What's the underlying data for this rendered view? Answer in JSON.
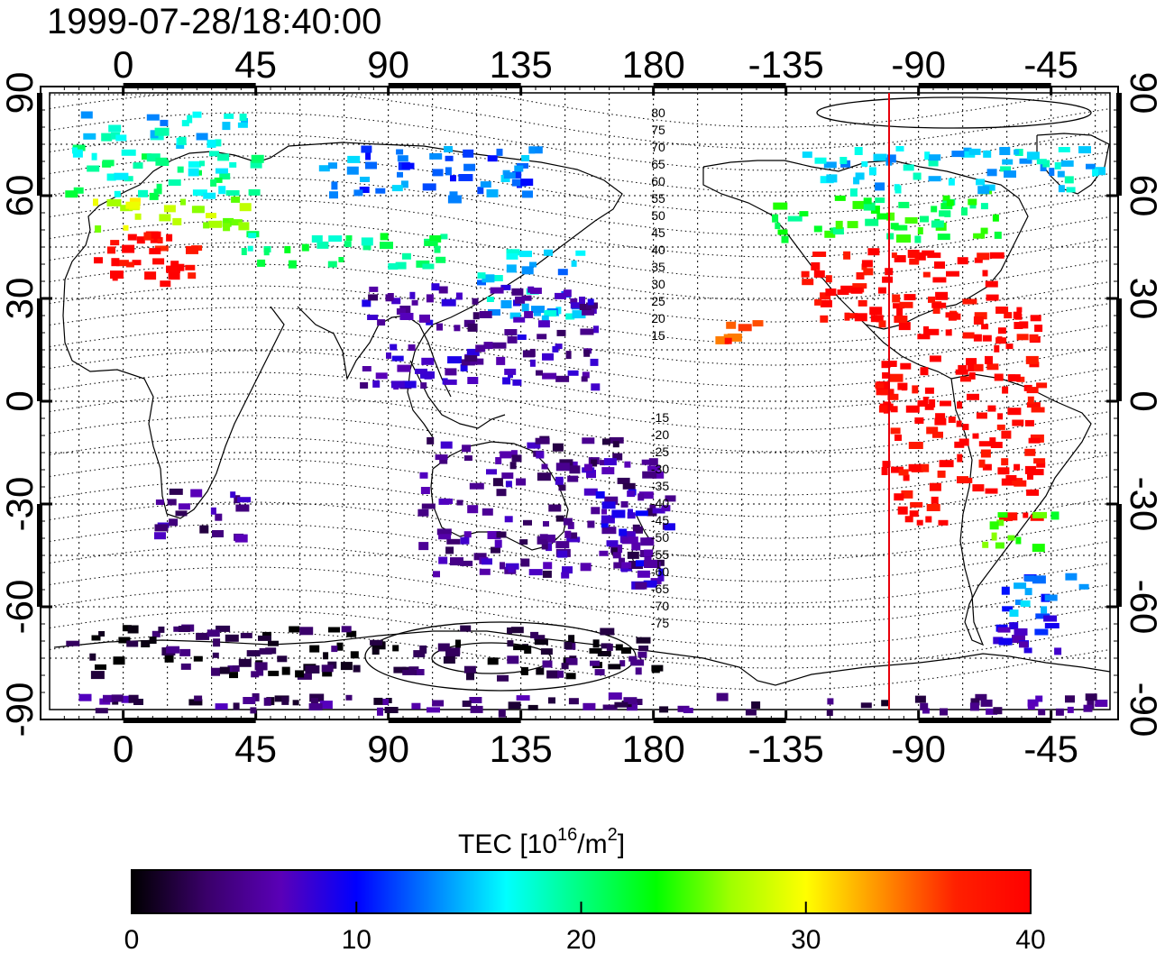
{
  "title": "1999-07-28/18:40:00",
  "map": {
    "projection": "equirectangular",
    "lon_range": [
      -25,
      335
    ],
    "lat_range": [
      -90,
      90
    ],
    "lon_ticks": [
      0,
      45,
      90,
      135,
      180,
      225,
      270,
      315
    ],
    "lon_tick_labels": [
      "0",
      "45",
      "90",
      "135",
      "180",
      "-135",
      "-90",
      "-45"
    ],
    "lat_ticks": [
      90,
      60,
      30,
      0,
      -30,
      -60,
      -90
    ],
    "lat_tick_labels": [
      "90",
      "60",
      "30",
      "0",
      "-30",
      "-60",
      "-90"
    ],
    "grid": "dotted, every 15 degrees",
    "subsolar_line_lon": -100,
    "subsolar_line_color": "#e8000b"
  },
  "magnetic_latitude_labels": [
    "80",
    "75",
    "70",
    "65",
    "60",
    "55",
    "50",
    "45",
    "40",
    "35",
    "30",
    "25",
    "20",
    "15",
    "-15",
    "-20",
    "-25",
    "-30",
    "-35",
    "-40",
    "-45",
    "-50",
    "-55",
    "-60",
    "-65",
    "-70",
    "-75"
  ],
  "colorbar": {
    "title_prefix": "TEC  [10",
    "title_exp1": "16",
    "title_mid": "/m",
    "title_exp2": "2",
    "title_suffix": "]",
    "ticks": [
      "0",
      "10",
      "20",
      "30",
      "40"
    ],
    "min": 0,
    "max": 40,
    "colors": [
      "#000000",
      "#3a006a",
      "#5a00b8",
      "#0000ff",
      "#0080ff",
      "#00ffff",
      "#00ff80",
      "#00ff00",
      "#a0ff00",
      "#ffff00",
      "#ff9000",
      "#ff2000",
      "#ff0000"
    ]
  },
  "chart_data": {
    "type": "heatmap",
    "title": "1999-07-28/18:40:00",
    "value_label": "TEC [10^16/m^2]",
    "value_range": [
      0,
      40
    ],
    "regions": [
      {
        "lon": [
          -15,
          30
        ],
        "lat": [
          35,
          50
        ],
        "tec": 39
      },
      {
        "lon": [
          -15,
          40
        ],
        "lat": [
          50,
          60
        ],
        "tec": 28
      },
      {
        "lon": [
          -20,
          45
        ],
        "lat": [
          60,
          75
        ],
        "tec": 19
      },
      {
        "lon": [
          -15,
          40
        ],
        "lat": [
          75,
          85
        ],
        "tec": 16
      },
      {
        "lon": [
          40,
          110
        ],
        "lat": [
          40,
          50
        ],
        "tec": 20
      },
      {
        "lon": [
          65,
          140
        ],
        "lat": [
          60,
          75
        ],
        "tec": 13
      },
      {
        "lon": [
          120,
          155
        ],
        "lat": [
          25,
          45
        ],
        "tec": 15
      },
      {
        "lon": [
          80,
          160
        ],
        "lat": [
          5,
          35
        ],
        "tec": 6
      },
      {
        "lon": [
          100,
          180
        ],
        "lat": [
          -50,
          -10
        ],
        "tec": 5
      },
      {
        "lon": [
          160,
          185
        ],
        "lat": [
          -55,
          -25
        ],
        "tec": 7
      },
      {
        "lon": [
          10,
          40
        ],
        "lat": [
          -40,
          -25
        ],
        "tec": 5
      },
      {
        "lon": [
          -20,
          180
        ],
        "lat": [
          -80,
          -65
        ],
        "tec": 2
      },
      {
        "lon": [
          -25,
          335
        ],
        "lat": [
          -90,
          -85
        ],
        "tec": 4
      },
      {
        "lon": [
          230,
          295
        ],
        "lat": [
          25,
          45
        ],
        "tec": 40
      },
      {
        "lon": [
          220,
          300
        ],
        "lat": [
          48,
          62
        ],
        "tec": 22
      },
      {
        "lon": [
          230,
          330
        ],
        "lat": [
          62,
          75
        ],
        "tec": 16
      },
      {
        "lon": [
          255,
          310
        ],
        "lat": [
          -35,
          30
        ],
        "tec": 40
      },
      {
        "lon": [
          290,
          315
        ],
        "lat": [
          -42,
          -32
        ],
        "tec": 25
      },
      {
        "lon": [
          295,
          325
        ],
        "lat": [
          -62,
          -50
        ],
        "tec": 13
      },
      {
        "lon": [
          295,
          325
        ],
        "lat": [
          -72,
          -62
        ],
        "tec": 9
      },
      {
        "lon": [
          200,
          215
        ],
        "lat": [
          15,
          25
        ],
        "tec": 36
      }
    ]
  }
}
